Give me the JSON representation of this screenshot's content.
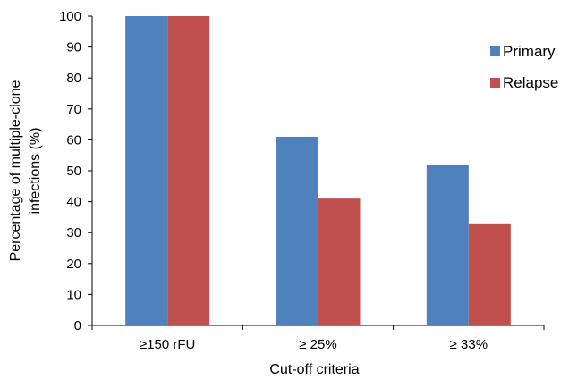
{
  "chart_data": {
    "type": "bar",
    "categories": [
      "≥150 rFU",
      "≥ 25%",
      "≥ 33%"
    ],
    "series": [
      {
        "name": "Primary",
        "values": [
          100,
          61,
          52
        ],
        "color": "#4F81BD"
      },
      {
        "name": "Relapse",
        "values": [
          100,
          41,
          33
        ],
        "color": "#C0504D"
      }
    ],
    "xlabel": "Cut-off criteria",
    "ylabel_lines": [
      "Percentage of multiple-clone",
      "infections (%)"
    ],
    "ylim": [
      0,
      100
    ],
    "yticks": [
      "0",
      "10",
      "20",
      "30",
      "40",
      "50",
      "60",
      "70",
      "80",
      "90",
      "100"
    ],
    "grid": false,
    "legend_position": "right"
  }
}
